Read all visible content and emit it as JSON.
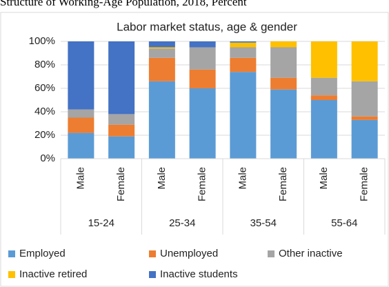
{
  "chart_data": {
    "type": "stacked_bar",
    "title": "Structure of Working-Age Population, 2018, Percent",
    "subtitle": "Labor market status, age & gender",
    "categories": [
      "Male",
      "Female",
      "Male",
      "Female",
      "Male",
      "Female",
      "Male",
      "Female"
    ],
    "groups": [
      "15-24",
      "25-34",
      "35-54",
      "55-64"
    ],
    "series": [
      {
        "name": "Employed",
        "color": "#5b9bd5",
        "values": [
          22,
          19,
          66,
          60,
          74,
          59,
          50,
          33
        ]
      },
      {
        "name": "Unemployed",
        "color": "#ed7d31",
        "values": [
          13,
          10,
          20,
          16,
          12,
          10,
          4,
          3
        ]
      },
      {
        "name": "Other inactive",
        "color": "#a5a5a5",
        "values": [
          7,
          9,
          8,
          19,
          9,
          26,
          15,
          30
        ]
      },
      {
        "name": "Inactive retired",
        "color": "#ffc000",
        "values": [
          0,
          0,
          1,
          0,
          4,
          5,
          31,
          34
        ]
      },
      {
        "name": "Inactive students",
        "color": "#4472c4",
        "values": [
          58,
          62,
          5,
          5,
          1,
          0,
          0,
          0
        ]
      }
    ],
    "ylim": [
      0,
      100
    ],
    "yticks": [
      {
        "value": 0,
        "label": "0%"
      },
      {
        "value": 20,
        "label": "20%"
      },
      {
        "value": 40,
        "label": "40%"
      },
      {
        "value": 60,
        "label": "60%"
      },
      {
        "value": 80,
        "label": "80%"
      },
      {
        "value": 100,
        "label": "100%"
      }
    ],
    "grid": true
  }
}
